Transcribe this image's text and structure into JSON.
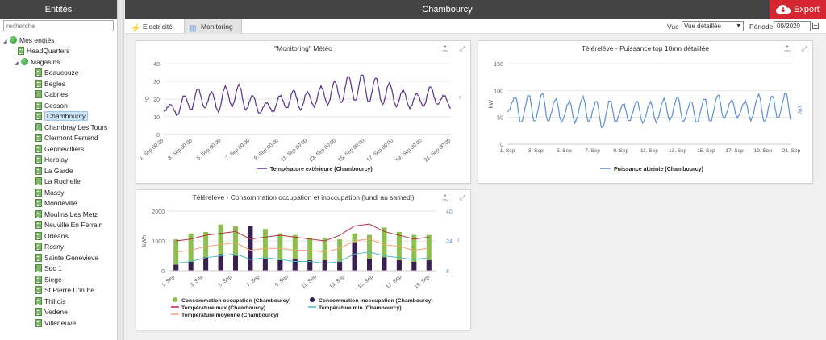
{
  "sidebar": {
    "title": "Entités",
    "search_placeholder": "recherche",
    "root_label": "Mes entités",
    "headquarters_label": "HeadQuarters",
    "magasins_label": "Magasins",
    "stores": [
      "Beaucouze",
      "Begles",
      "Cabries",
      "Cesson",
      "Chambourcy",
      "Chambray Les Tours",
      "Clermont Ferrand",
      "Gennevilliers",
      "Herblay",
      "La Garde",
      "La Rochelle",
      "Massy",
      "Mondeville",
      "Moulins Les Metz",
      "Neuville En Ferrain",
      "Orleans",
      "Rosny",
      "Sainte Genevieve",
      "Sdc 1",
      "Siege",
      "St Pierre D'irube",
      "Thillois",
      "Vedene",
      "Villeneuve"
    ],
    "selected": "Chambourcy"
  },
  "header": {
    "title": "Chambourcy",
    "export_label": "Export"
  },
  "toolbar": {
    "tabs": [
      {
        "label": "Electricité",
        "icon": "lightning-icon"
      },
      {
        "label": "Monitoring",
        "icon": "monitoring-icon"
      }
    ],
    "active_tab": "Monitoring",
    "vue_label": "Vue :",
    "vue_value": "Vue détaillée",
    "periode_label": "Période :",
    "periode_value": "09/2020"
  },
  "colors": {
    "purple": "#5b2d8e",
    "blue": "#5b8fd6",
    "green": "#8bbf4e",
    "darkpurple": "#3a1f55",
    "red": "#b03040",
    "cyan": "#48b8c8",
    "orange": "#f2a070",
    "export_red": "#d62630"
  },
  "panels": {
    "tool_csv": "csv",
    "meteo": {
      "title": "\"Monitoring\" Météo"
    },
    "puissance": {
      "title": "Télérelève - Puissance top 10mn détaillée"
    },
    "conso": {
      "title": "Télérelève - Consommation occupation et inoccupation (lundi au samedi)"
    }
  },
  "chart_data": [
    {
      "type": "line",
      "title": "\"Monitoring\" Météo",
      "ylabel": "°C",
      "ylim": [
        0,
        40
      ],
      "yticks": [
        0,
        10,
        20,
        30,
        40
      ],
      "xticks": [
        "1. Sep 00:00",
        "3. Sep 00:00",
        "5. Sep 00:00",
        "7. Sep 00:00",
        "9. Sep 00:00",
        "11. Sep 00:00",
        "13. Sep 00:00",
        "15. Sep 00:00",
        "17. Sep 00:00",
        "19. Sep 00:00",
        "21. Sep 00:00"
      ],
      "series": [
        {
          "name": "Température extérieure (Chambourcy)",
          "x": [
            0,
            0.5,
            1,
            1.5,
            2,
            2.5,
            3,
            3.5,
            4,
            4.5,
            5,
            5.5,
            6,
            6.5,
            7,
            7.5,
            8,
            8.5,
            9,
            9.5,
            10,
            10.5,
            11,
            11.5,
            12,
            12.5,
            13,
            13.5,
            14,
            14.5,
            15,
            15.5,
            16,
            16.5,
            17,
            17.5,
            18,
            18.5,
            19,
            19.5,
            20,
            20.5,
            21
          ],
          "values": [
            13,
            17,
            11,
            22,
            14,
            26,
            15,
            24,
            13,
            27,
            16,
            28,
            14,
            22,
            12,
            18,
            13,
            22,
            15,
            25,
            14,
            24,
            16,
            27,
            17,
            30,
            18,
            33,
            19,
            34,
            18,
            32,
            17,
            29,
            16,
            25,
            15,
            23,
            16,
            27,
            17,
            22,
            15
          ]
        }
      ]
    },
    {
      "type": "line",
      "title": "Télérelève - Puissance top 10mn détaillée",
      "ylabel": "kW",
      "ylim": [
        0,
        150
      ],
      "yticks": [
        0,
        50,
        100,
        150
      ],
      "xticks": [
        "1. Sep",
        "3. Sep",
        "5. Sep",
        "7. Sep",
        "9. Sep",
        "11. Sep",
        "13. Sep",
        "15. Sep",
        "17. Sep",
        "19. Sep",
        "21. Sep"
      ],
      "series": [
        {
          "name": "Puissance atteinte (Chambourcy)",
          "x": [
            0,
            0.6,
            1,
            1.6,
            2,
            2.6,
            3,
            3.6,
            4,
            4.6,
            5,
            5.6,
            6,
            6.6,
            7,
            7.6,
            8,
            8.6,
            9,
            9.6,
            10,
            10.6,
            11,
            11.6,
            12,
            12.6,
            13,
            13.6,
            14,
            14.6,
            15,
            15.6,
            16,
            16.6,
            17,
            17.6,
            18,
            18.6,
            19,
            19.6,
            20,
            20.6,
            21
          ],
          "values": [
            60,
            88,
            40,
            92,
            42,
            95,
            43,
            84,
            42,
            80,
            41,
            88,
            42,
            80,
            30,
            82,
            42,
            75,
            43,
            80,
            40,
            78,
            42,
            84,
            45,
            88,
            42,
            80,
            40,
            85,
            42,
            92,
            48,
            82,
            50,
            80,
            45,
            92,
            42,
            90,
            48,
            95,
            45
          ]
        }
      ]
    },
    {
      "type": "bar",
      "title": "Télérelève - Consommation occupation et inoccupation (lundi au samedi)",
      "ylabel": "kWh",
      "ylim": [
        0,
        2000
      ],
      "yticks": [
        0,
        1000,
        2000
      ],
      "y2ticks": [
        8,
        24,
        40
      ],
      "xticks": [
        "1. Sep",
        "3. Sep",
        "5. Sep",
        "7. Sep",
        "9. Sep",
        "11. Sep",
        "13. Sep",
        "15. Sep",
        "17. Sep",
        "19. Sep"
      ],
      "categories": [
        "1",
        "2",
        "3",
        "4",
        "5",
        "7",
        "8",
        "9",
        "10",
        "11",
        "12",
        "14",
        "15",
        "16",
        "17",
        "18",
        "19",
        "20"
      ],
      "occupation": [
        1050,
        1250,
        1300,
        1550,
        1500,
        1450,
        1400,
        1250,
        1200,
        1100,
        1100,
        1050,
        1250,
        1200,
        1450,
        1300,
        1200,
        1200
      ],
      "inoccupation": [
        200,
        300,
        450,
        550,
        500,
        1500,
        400,
        350,
        400,
        350,
        350,
        300,
        950,
        400,
        450,
        350,
        300,
        350
      ],
      "temp_max": [
        24,
        25,
        27,
        28,
        29,
        25,
        26,
        27,
        26,
        25,
        24,
        27,
        32,
        33,
        29,
        27,
        25,
        26
      ],
      "temp_min": [
        12,
        13,
        15,
        16,
        17,
        14,
        15,
        14,
        13,
        13,
        12,
        13,
        17,
        18,
        16,
        15,
        14,
        15
      ],
      "temp_moy": [
        18,
        19,
        21,
        22,
        23,
        19,
        20,
        20,
        19,
        19,
        18,
        20,
        24,
        25,
        22,
        21,
        19,
        20
      ],
      "legend": [
        "Consommation occupation (Chambourcy)",
        "Consommation inoccupation (Chambourcy)",
        "Température max (Chambourcy)",
        "Température min (Chambourcy)",
        "Température moyenne (Chambourcy)"
      ]
    }
  ]
}
